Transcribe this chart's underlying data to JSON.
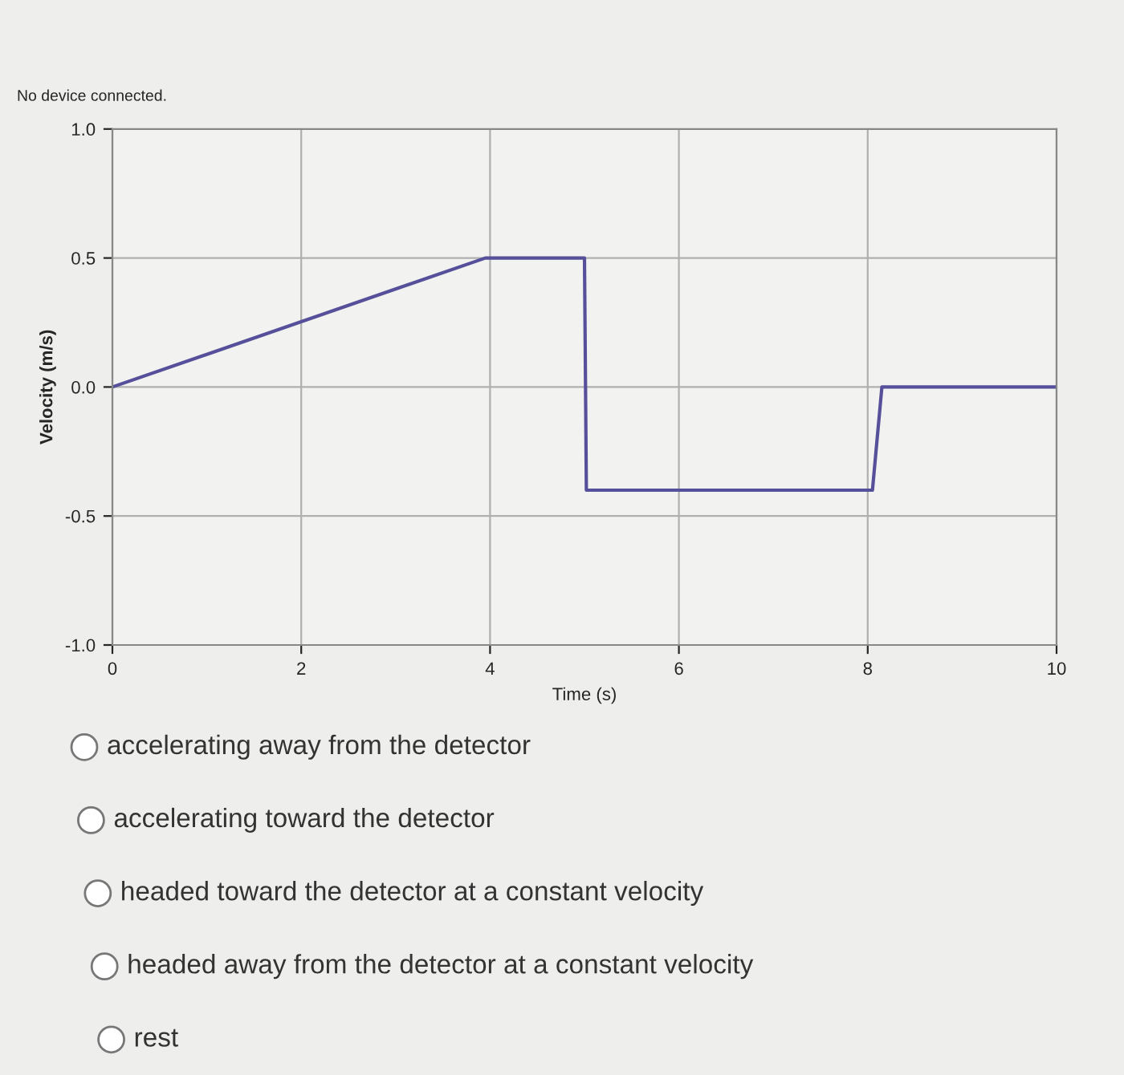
{
  "chart_data": {
    "type": "line",
    "xlabel": "Time (s)",
    "ylabel": "Velocity (m/s)",
    "x": [
      0,
      3.95,
      5.0,
      5.02,
      8.05,
      8.15,
      10
    ],
    "series": [
      {
        "color": "#56509a",
        "values": [
          0,
          0.5,
          0.5,
          -0.4,
          -0.4,
          0,
          0
        ]
      }
    ],
    "xlim": [
      0,
      10
    ],
    "ylim": [
      -1.0,
      1.0
    ],
    "xticks": [
      0,
      2,
      4,
      6,
      8,
      10
    ],
    "yticks": [
      {
        "value": -1.0,
        "label": "-1.0"
      },
      {
        "value": -0.5,
        "label": "-0.5"
      },
      {
        "value": 0.0,
        "label": "0.0"
      },
      {
        "value": 0.5,
        "label": "0.5"
      },
      {
        "value": 1.0,
        "label": "1.0"
      }
    ],
    "grid": true,
    "marker": "none",
    "line_style": "solid",
    "annotations": [
      "No device connected.",
      "accelerating away from the detector",
      "accelerating toward the detector",
      "headed toward the detector at a constant velocity",
      "headed away from the detector at a constant velocity",
      "rest"
    ]
  }
}
